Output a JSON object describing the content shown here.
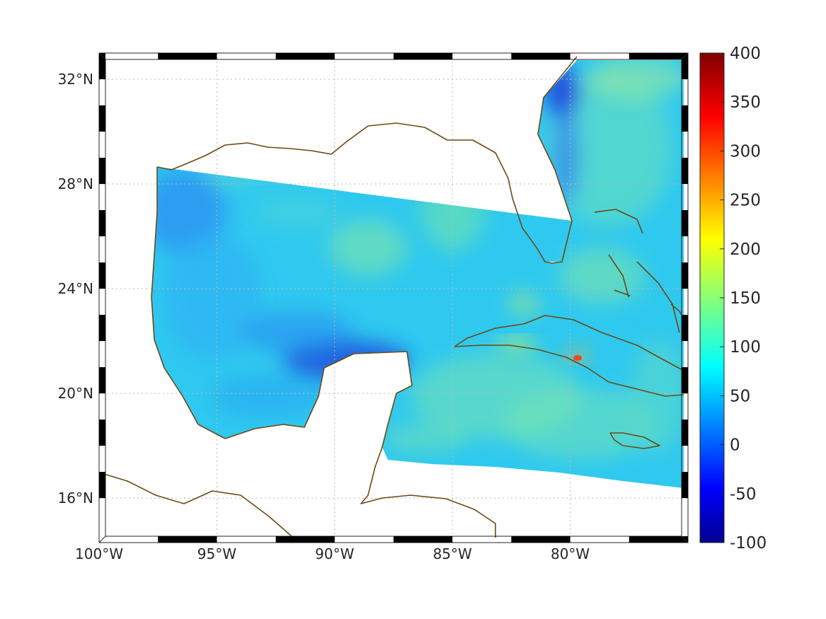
{
  "map": {
    "lon_range": [
      -100,
      -75
    ],
    "lat_range": [
      14.3,
      33
    ],
    "x_ticks": [
      {
        "value": -100,
        "label": "100°W"
      },
      {
        "value": -95,
        "label": "95°W"
      },
      {
        "value": -90,
        "label": "90°W"
      },
      {
        "value": -85,
        "label": "85°W"
      },
      {
        "value": -80,
        "label": "80°W"
      }
    ],
    "y_ticks": [
      {
        "value": 16,
        "label": "16°N"
      },
      {
        "value": 20,
        "label": "20°N"
      },
      {
        "value": 24,
        "label": "24°N"
      },
      {
        "value": 28,
        "label": "28°N"
      },
      {
        "value": 32,
        "label": "32°N"
      }
    ],
    "grid": "dotted",
    "coastline_color": "#6b4a12",
    "frame": "black-and-white checkered border"
  },
  "colorbar": {
    "min": -100,
    "max": 400,
    "colormap": "jet",
    "ticks": [
      "400",
      "350",
      "300",
      "250",
      "200",
      "150",
      "100",
      "50",
      "0",
      "-50",
      "-100"
    ]
  }
}
